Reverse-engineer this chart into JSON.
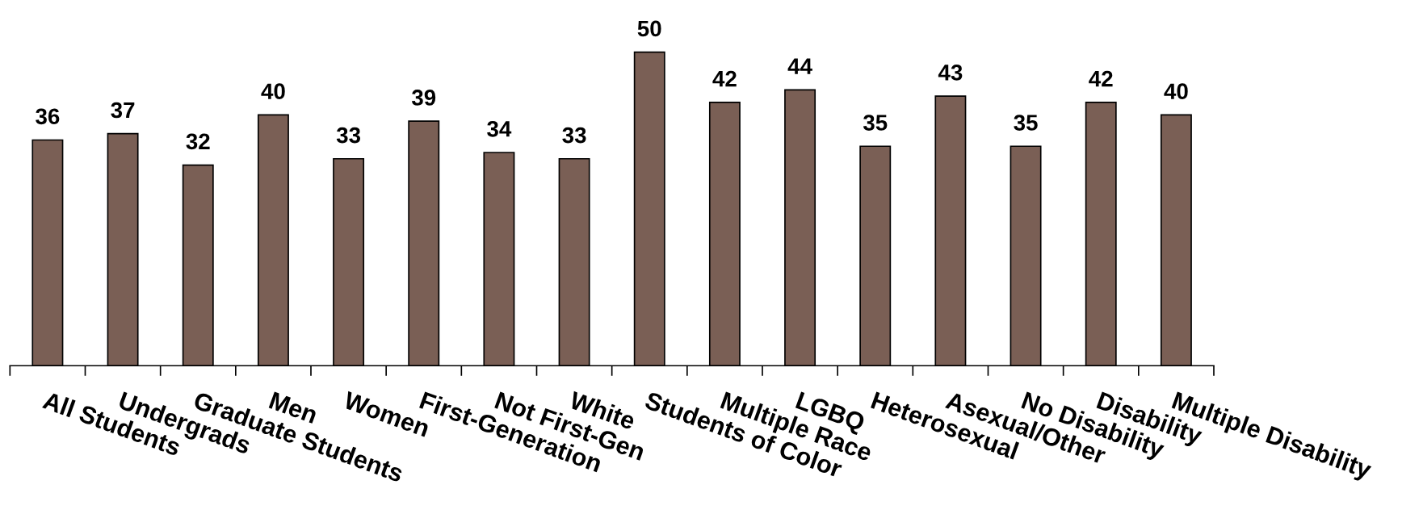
{
  "chart_data": {
    "type": "bar",
    "categories": [
      "All Students",
      "Undergrads",
      "Graduate Students",
      "Men",
      "Women",
      "First-Generation",
      "Not First-Gen",
      "White",
      "Students of Color",
      "Multiple Race",
      "LGBQ",
      "Heterosexual",
      "Asexual/Other",
      "No Disability",
      "Disability",
      "Multiple Disability"
    ],
    "values": [
      36,
      37,
      32,
      40,
      33,
      39,
      34,
      33,
      50,
      42,
      44,
      35,
      43,
      35,
      42,
      40
    ],
    "color": "#7a5f55",
    "data_labels": true,
    "tick_labels": "x",
    "grid": false,
    "legend": false
  }
}
